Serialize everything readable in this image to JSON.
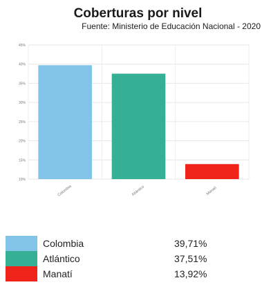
{
  "title": "Coberturas por nivel",
  "subtitle": "Fuente: Ministerio de Educación Nacional - 2020",
  "chart_data": {
    "type": "bar",
    "title": "Coberturas por nivel",
    "subtitle": "Fuente: Ministerio de Educación Nacional - 2020",
    "categories": [
      "Colombia",
      "Atlántico",
      "Manatí"
    ],
    "values": [
      39.71,
      37.51,
      13.92
    ],
    "colors": [
      "#82c4e8",
      "#35b095",
      "#f0231b"
    ],
    "ylim": [
      10,
      45
    ],
    "yticks": [
      10,
      15,
      20,
      25,
      30,
      35,
      40,
      45
    ],
    "ytick_labels": [
      "10%",
      "15%",
      "20%",
      "25%",
      "30%",
      "35%",
      "40%",
      "45%"
    ],
    "grid": true,
    "legend_position": "bottom"
  },
  "legend": [
    {
      "name": "Colombia",
      "value": "39,71%",
      "color": "#82c4e8"
    },
    {
      "name": "Atlántico",
      "value": "37,51%",
      "color": "#35b095"
    },
    {
      "name": "Manatí",
      "value": "13,92%",
      "color": "#f0231b"
    }
  ]
}
